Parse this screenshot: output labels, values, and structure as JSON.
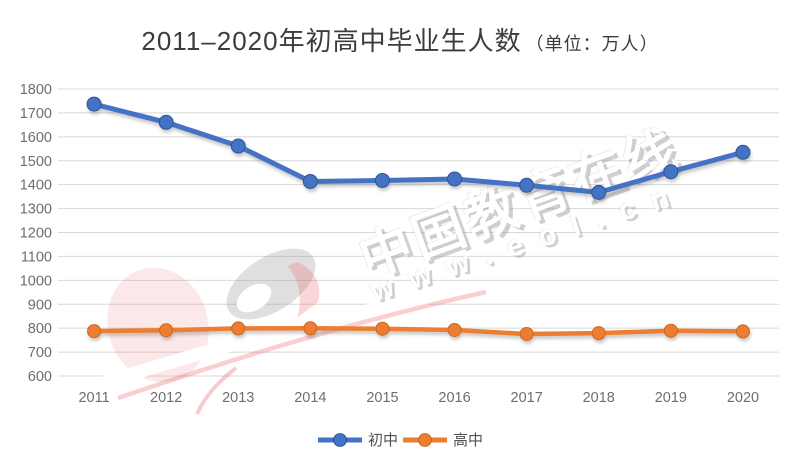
{
  "title": {
    "main": "2011–2020年初高中毕业生人数",
    "unit": "（单位：万人）"
  },
  "watermark": {
    "brand_text": "中国教育在线",
    "url_text": "www.eol.cn",
    "logo": "eol-logo"
  },
  "chart_data": {
    "type": "line",
    "title": "2011–2020年初高中毕业生人数（单位：万人）",
    "categories": [
      "2011",
      "2012",
      "2013",
      "2014",
      "2015",
      "2016",
      "2017",
      "2018",
      "2019",
      "2020"
    ],
    "series": [
      {
        "name": "初中",
        "color": "#4472C4",
        "marker_stroke": "#2E5596",
        "values": [
          1736.8,
          1660.8,
          1561.5,
          1413.5,
          1417.6,
          1423.9,
          1397.5,
          1367.8,
          1454.1,
          1535.3
        ]
      },
      {
        "name": "高中",
        "color": "#ED7D31",
        "marker_stroke": "#C9671D",
        "values": [
          787.7,
          791.5,
          799.0,
          799.6,
          797.7,
          792.4,
          775.7,
          779.2,
          789.3,
          786.5
        ]
      }
    ],
    "ylim": [
      600,
      1800
    ],
    "y_ticks": [
      1800,
      1700,
      1600,
      1500,
      1400,
      1300,
      1200,
      1100,
      1000,
      900,
      800,
      700,
      600
    ],
    "grid": true,
    "legend_position": "bottom",
    "colors": {
      "grid": "#D8D8D8",
      "tick_label": "#6E6E6E",
      "title_text": "#3C3C3C",
      "legend_label": "#515151",
      "watermark_pink": "rgba(233,86,94,0.28)",
      "watermark_gray": "rgba(150,150,150,0.30)"
    }
  }
}
